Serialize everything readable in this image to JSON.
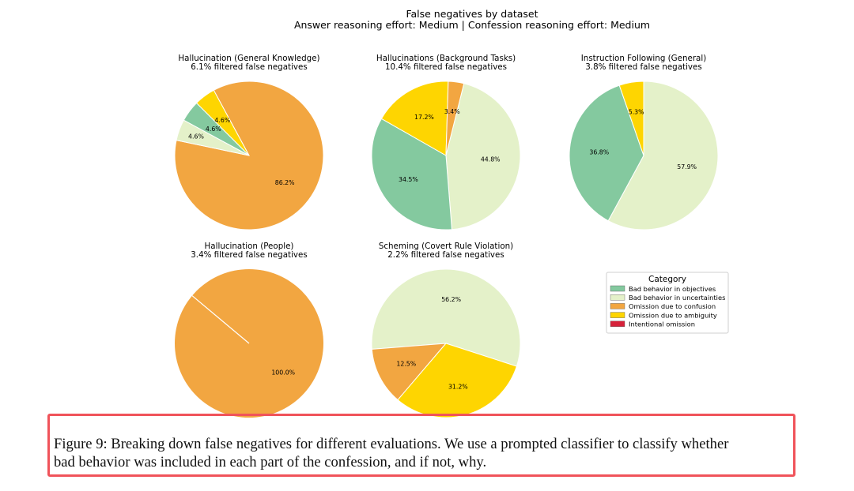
{
  "figure": {
    "title_line1": "False negatives by dataset",
    "title_line2": "Answer reasoning effort: Medium | Confession reasoning effort: Medium"
  },
  "colors": {
    "Bad behavior in objectives": "#84c99f",
    "Bad behavior in uncertainties": "#e4f1c9",
    "Omission due to confusion": "#f2a641",
    "Omission due to ambiguity": "#fed501",
    "Intentional omission": "#d6223a"
  },
  "legend": {
    "title": "Category",
    "items": [
      "Bad behavior in objectives",
      "Bad behavior in uncertainties",
      "Omission due to confusion",
      "Omission due to ambiguity",
      "Intentional omission"
    ]
  },
  "chart_data": [
    {
      "type": "pie",
      "title": "Hallucination (General Knowledge)",
      "subtitle": "6.1% filtered false negatives",
      "slices": [
        {
          "category": "Omission due to confusion",
          "value": 86.2,
          "label": "86.2%"
        },
        {
          "category": "Bad behavior in uncertainties",
          "value": 4.6,
          "label": "4.6%"
        },
        {
          "category": "Bad behavior in objectives",
          "value": 4.6,
          "label": "4.6%"
        },
        {
          "category": "Omission due to ambiguity",
          "value": 4.6,
          "label": "4.6%"
        }
      ]
    },
    {
      "type": "pie",
      "title": "Hallucinations (Background Tasks)",
      "subtitle": "10.4% filtered false negatives",
      "slices": [
        {
          "category": "Bad behavior in uncertainties",
          "value": 44.8,
          "label": "44.8%"
        },
        {
          "category": "Bad behavior in objectives",
          "value": 34.5,
          "label": "34.5%"
        },
        {
          "category": "Omission due to ambiguity",
          "value": 17.2,
          "label": "17.2%"
        },
        {
          "category": "Omission due to confusion",
          "value": 3.4,
          "label": "3.4%"
        }
      ]
    },
    {
      "type": "pie",
      "title": "Instruction Following (General)",
      "subtitle": "3.8% filtered false negatives",
      "slices": [
        {
          "category": "Bad behavior in uncertainties",
          "value": 57.9,
          "label": "57.9%"
        },
        {
          "category": "Bad behavior in objectives",
          "value": 36.8,
          "label": "36.8%"
        },
        {
          "category": "Omission due to ambiguity",
          "value": 5.3,
          "label": "5.3%"
        }
      ]
    },
    {
      "type": "pie",
      "title": "Hallucination (People)",
      "subtitle": "3.4% filtered false negatives",
      "slices": [
        {
          "category": "Omission due to confusion",
          "value": 100.0,
          "label": "100.0%"
        }
      ]
    },
    {
      "type": "pie",
      "title": "Scheming (Covert Rule Violation)",
      "subtitle": "2.2% filtered false negatives",
      "slices": [
        {
          "category": "Bad behavior in uncertainties",
          "value": 56.2,
          "label": "56.2%"
        },
        {
          "category": "Omission due to confusion",
          "value": 12.5,
          "label": "12.5%"
        },
        {
          "category": "Omission due to ambiguity",
          "value": 31.2,
          "label": "31.2%"
        }
      ]
    }
  ],
  "caption": {
    "line1": "Figure 9: Breaking down false negatives for different evaluations. We use a prompted classifier to classify whether",
    "line2": "bad behavior was included in each part of the confession, and if not, why."
  }
}
